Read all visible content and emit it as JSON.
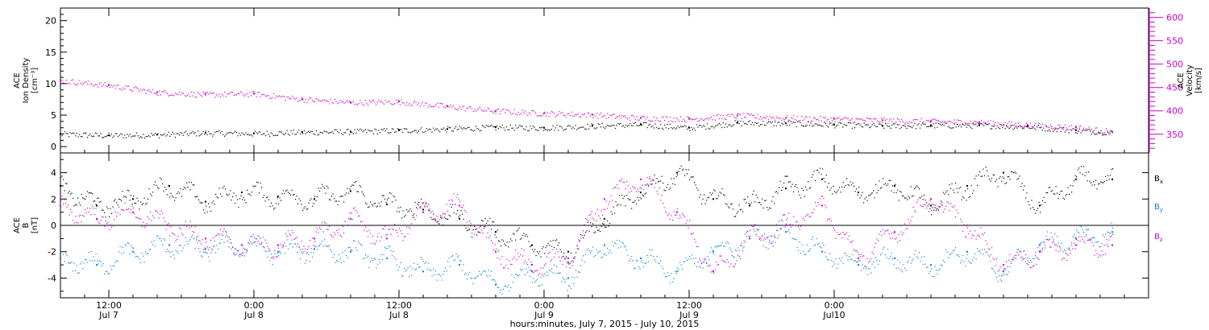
{
  "colors": {
    "axis": "#000000",
    "density": "#000000",
    "velocity": "#cc00cc",
    "bx": "#000000",
    "by": "#0a7fdc",
    "bz": "#cc00cc"
  },
  "chart_data": [
    {
      "type": "scatter",
      "panel": "top",
      "ylabel_left": [
        "ACE",
        "Ion Density",
        "[cm⁻³]"
      ],
      "ylabel_right": [
        "ACE",
        "Velocity",
        "[km/s]"
      ],
      "x_unit": "hours since Jul 7 2015 08:00",
      "xlim": [
        0,
        90
      ],
      "ylim_left": [
        -1,
        22
      ],
      "ylim_right": [
        310,
        620
      ],
      "left_ticks": [
        "0",
        "5",
        "10",
        "15",
        "20"
      ],
      "left_tick_values": [
        0,
        5,
        10,
        15,
        20
      ],
      "right_ticks": [
        "350",
        "400",
        "450",
        "500",
        "550",
        "600"
      ],
      "right_tick_values": [
        350,
        400,
        450,
        500,
        550,
        600
      ],
      "series": [
        {
          "key": "density",
          "axis": "left",
          "x": [
            0,
            4,
            8,
            12,
            16,
            20,
            24,
            28,
            32,
            36,
            40,
            44,
            48,
            52,
            56,
            60,
            64,
            68,
            72,
            76,
            80,
            84,
            87
          ],
          "values": [
            2.0,
            1.8,
            1.9,
            2.2,
            2.1,
            2.3,
            2.4,
            2.6,
            2.8,
            3.1,
            3.0,
            3.3,
            3.5,
            3.0,
            3.8,
            3.7,
            3.5,
            3.3,
            3.4,
            3.4,
            3.2,
            2.6,
            2.3
          ]
        },
        {
          "key": "velocity",
          "axis": "right",
          "x": [
            0,
            4,
            8,
            12,
            16,
            20,
            24,
            28,
            32,
            36,
            40,
            44,
            48,
            52,
            56,
            60,
            64,
            68,
            72,
            76,
            80,
            84,
            87
          ],
          "values": [
            465,
            455,
            440,
            435,
            437,
            425,
            418,
            420,
            410,
            400,
            395,
            392,
            385,
            383,
            390,
            385,
            383,
            380,
            378,
            376,
            370,
            365,
            355
          ]
        }
      ]
    },
    {
      "type": "scatter",
      "panel": "bottom",
      "ylabel": [
        "ACE",
        "B",
        "[nT]"
      ],
      "xlim": [
        0,
        90
      ],
      "ylim": [
        -5.5,
        5.5
      ],
      "yticks": [
        "-4",
        "-2",
        "0",
        "2",
        "4"
      ],
      "ytick_values": [
        -4,
        -2,
        0,
        2,
        4
      ],
      "legend": [
        "Bx",
        "By",
        "Bz"
      ],
      "series": [
        {
          "key": "bx",
          "name": "Bx",
          "x": [
            0,
            3,
            6,
            9,
            12,
            15,
            18,
            21,
            24,
            27,
            30,
            33,
            36,
            39,
            42,
            45,
            48,
            51,
            54,
            57,
            60,
            63,
            66,
            69,
            72,
            75,
            78,
            81,
            84,
            87
          ],
          "values": [
            3.0,
            1.5,
            2.0,
            3.0,
            1.8,
            2.5,
            2.2,
            2.0,
            2.6,
            1.6,
            1.2,
            0.5,
            -0.5,
            -1.5,
            -2.0,
            0.5,
            2.5,
            4.0,
            2.0,
            1.5,
            2.8,
            3.5,
            2.5,
            3.0,
            1.5,
            3.0,
            4.0,
            1.5,
            3.5,
            3.5
          ]
        },
        {
          "key": "by",
          "name": "By",
          "x": [
            0,
            3,
            6,
            9,
            12,
            15,
            18,
            21,
            24,
            27,
            30,
            33,
            36,
            39,
            42,
            45,
            48,
            51,
            54,
            57,
            60,
            63,
            66,
            69,
            72,
            75,
            78,
            81,
            84,
            87
          ],
          "values": [
            -2.5,
            -3.0,
            -2.0,
            -1.5,
            -1.8,
            -1.5,
            -2.0,
            -1.8,
            -2.0,
            -2.5,
            -3.5,
            -3.0,
            -4.5,
            -3.5,
            -4.0,
            -1.5,
            -2.5,
            -3.5,
            -2.0,
            -1.0,
            -0.5,
            -2.0,
            -3.0,
            -2.5,
            -3.0,
            -2.0,
            -3.5,
            -1.5,
            -1.0,
            -0.5
          ]
        },
        {
          "key": "bz",
          "name": "Bz",
          "x": [
            0,
            3,
            6,
            9,
            12,
            15,
            18,
            21,
            24,
            27,
            30,
            33,
            36,
            39,
            42,
            45,
            48,
            51,
            54,
            57,
            60,
            63,
            66,
            69,
            72,
            75,
            78,
            81,
            84,
            87
          ],
          "values": [
            1.5,
            0.5,
            1.0,
            0.0,
            -1.0,
            -1.5,
            -1.5,
            -1.0,
            0.5,
            -1.0,
            1.0,
            1.5,
            -2.0,
            -3.0,
            -2.5,
            2.0,
            3.5,
            1.0,
            -3.5,
            -1.0,
            0.0,
            1.5,
            -2.5,
            -0.5,
            2.0,
            0.0,
            -3.0,
            -2.0,
            -1.5,
            -1.5
          ]
        }
      ]
    }
  ],
  "x_ticks": [
    {
      "time": "12:00",
      "date": "Jul 7",
      "x": 4
    },
    {
      "time": "0:00",
      "date": "Jul 8",
      "x": 16
    },
    {
      "time": "12:00",
      "date": "Jul 8",
      "x": 28
    },
    {
      "time": "0:00",
      "date": "Jul 9",
      "x": 40
    },
    {
      "time": "12:00",
      "date": "Jul 9",
      "x": 52
    },
    {
      "time": "0:00",
      "date": "Jul10",
      "x": 64
    }
  ],
  "x_caption": "hours:minutes, July  7, 2015 - July 10, 2015"
}
